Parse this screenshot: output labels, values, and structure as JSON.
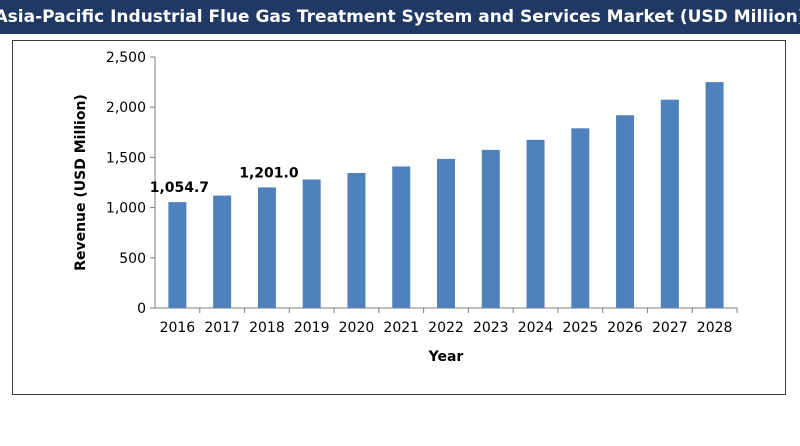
{
  "title": "Asia-Pacific Industrial Flue Gas Treatment System and Services Market (USD Million)",
  "colors": {
    "header_bg": "#1f3864",
    "bar": "#4f81bd",
    "axis": "#7f7f7f"
  },
  "chart_data": {
    "type": "bar",
    "title": "Asia-Pacific Industrial Flue Gas Treatment System and Services Market (USD Million)",
    "xlabel": "Year",
    "ylabel": "Revenue (USD Million)",
    "ylim": [
      0,
      2500
    ],
    "yticks": [
      0,
      500,
      1000,
      1500,
      2000,
      2500
    ],
    "ytick_labels": [
      "0",
      "500",
      "1,000",
      "1,500",
      "2,000",
      "2,500"
    ],
    "categories": [
      "2016",
      "2017",
      "2018",
      "2019",
      "2020",
      "2021",
      "2022",
      "2023",
      "2024",
      "2025",
      "2026",
      "2027",
      "2028"
    ],
    "values": [
      1054.7,
      1120,
      1201.0,
      1280,
      1345,
      1410,
      1485,
      1575,
      1675,
      1790,
      1920,
      2075,
      2250
    ],
    "data_labels": [
      {
        "index": 0,
        "text": "1,054.7"
      },
      {
        "index": 2,
        "text": "1,201.0"
      }
    ],
    "grid": false,
    "legend": "none"
  }
}
